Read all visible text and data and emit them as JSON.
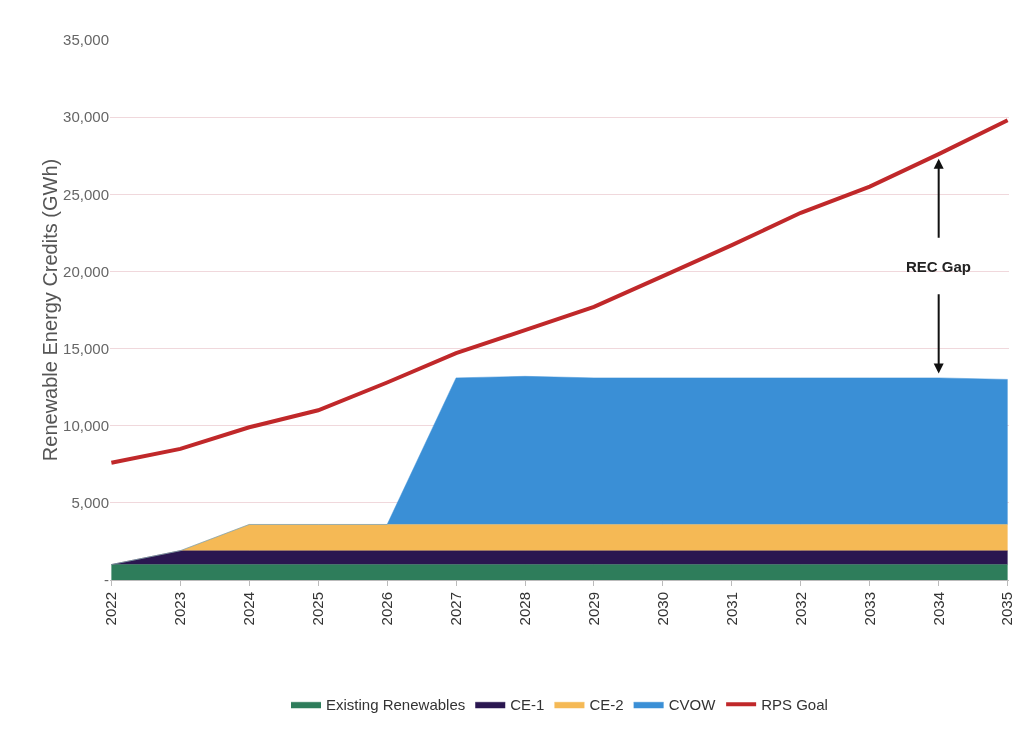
{
  "chart_data": {
    "type": "area",
    "stacked": true,
    "ylabel": "Renewable Energy Credits (GWh)",
    "categories": [
      "2022",
      "2023",
      "2024",
      "2025",
      "2026",
      "2027",
      "2028",
      "2029",
      "2030",
      "2031",
      "2032",
      "2033",
      "2034",
      "2035"
    ],
    "series": [
      {
        "name": "Existing Renewables",
        "color": "#2e7d5b",
        "values": [
          1000,
          1000,
          1000,
          1000,
          1000,
          1000,
          1000,
          1000,
          1000,
          1000,
          1000,
          1000,
          1000,
          1000
        ]
      },
      {
        "name": "CE-1",
        "color": "#2a1650",
        "values": [
          0,
          900,
          900,
          900,
          900,
          900,
          900,
          900,
          900,
          900,
          900,
          900,
          900,
          900
        ]
      },
      {
        "name": "CE-2",
        "color": "#f5b955",
        "values": [
          0,
          0,
          1700,
          1700,
          1700,
          1700,
          1700,
          1700,
          1700,
          1700,
          1700,
          1700,
          1700,
          1700
        ]
      },
      {
        "name": "CVOW",
        "color": "#3a8fd6",
        "values": [
          0,
          0,
          0,
          0,
          0,
          9500,
          9600,
          9500,
          9500,
          9500,
          9500,
          9500,
          9500,
          9400
        ]
      },
      {
        "name": "RPS Goal",
        "type": "line",
        "color": "#c0282a",
        "values": [
          7600,
          8500,
          9900,
          11000,
          12800,
          14700,
          16200,
          17700,
          19700,
          21700,
          23800,
          25500,
          27600,
          29800
        ]
      }
    ],
    "ylim": [
      0,
      35000
    ],
    "yticks": [
      {
        "value": 0,
        "label": "-"
      },
      {
        "value": 5000,
        "label": "5,000"
      },
      {
        "value": 10000,
        "label": "10,000"
      },
      {
        "value": 15000,
        "label": "15,000"
      },
      {
        "value": 20000,
        "label": "20,000"
      },
      {
        "value": 25000,
        "label": "25,000"
      },
      {
        "value": 30000,
        "label": "30,000"
      },
      {
        "value": 35000,
        "label": "35,000"
      }
    ],
    "grid": "y",
    "legend": "bottom",
    "annotations": [
      "REC Gap"
    ]
  }
}
